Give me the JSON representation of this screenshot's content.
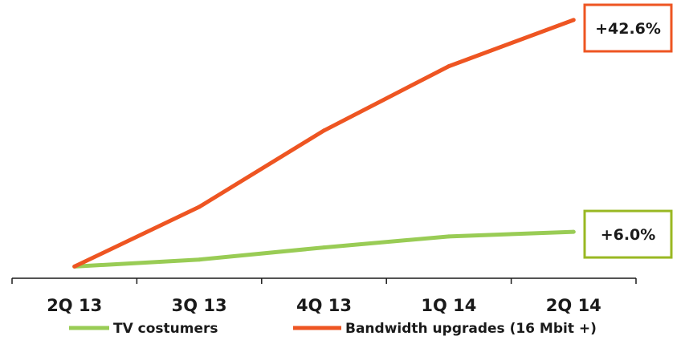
{
  "chart_data": {
    "type": "line",
    "categories": [
      "2Q 13",
      "3Q 13",
      "4Q 13",
      "1Q 14",
      "2Q 14"
    ],
    "series": [
      {
        "name": "TV costumers",
        "color": "#99cc55",
        "values": [
          100.0,
          101.2,
          103.3,
          105.2,
          106.0
        ]
      },
      {
        "name": "Bandwidth upgrades (16 Mbit +)",
        "color": "#ee5522",
        "values": [
          100.0,
          110.3,
          123.5,
          134.6,
          142.6
        ]
      }
    ],
    "callouts": [
      {
        "series_index": 1,
        "text": "+42.6%",
        "border_color": "#ee5522"
      },
      {
        "series_index": 0,
        "text": "+6.0%",
        "border_color": "#99b822"
      }
    ],
    "ylim": [
      99.5,
      143.0
    ],
    "grid": false,
    "legend_position": "bottom"
  }
}
